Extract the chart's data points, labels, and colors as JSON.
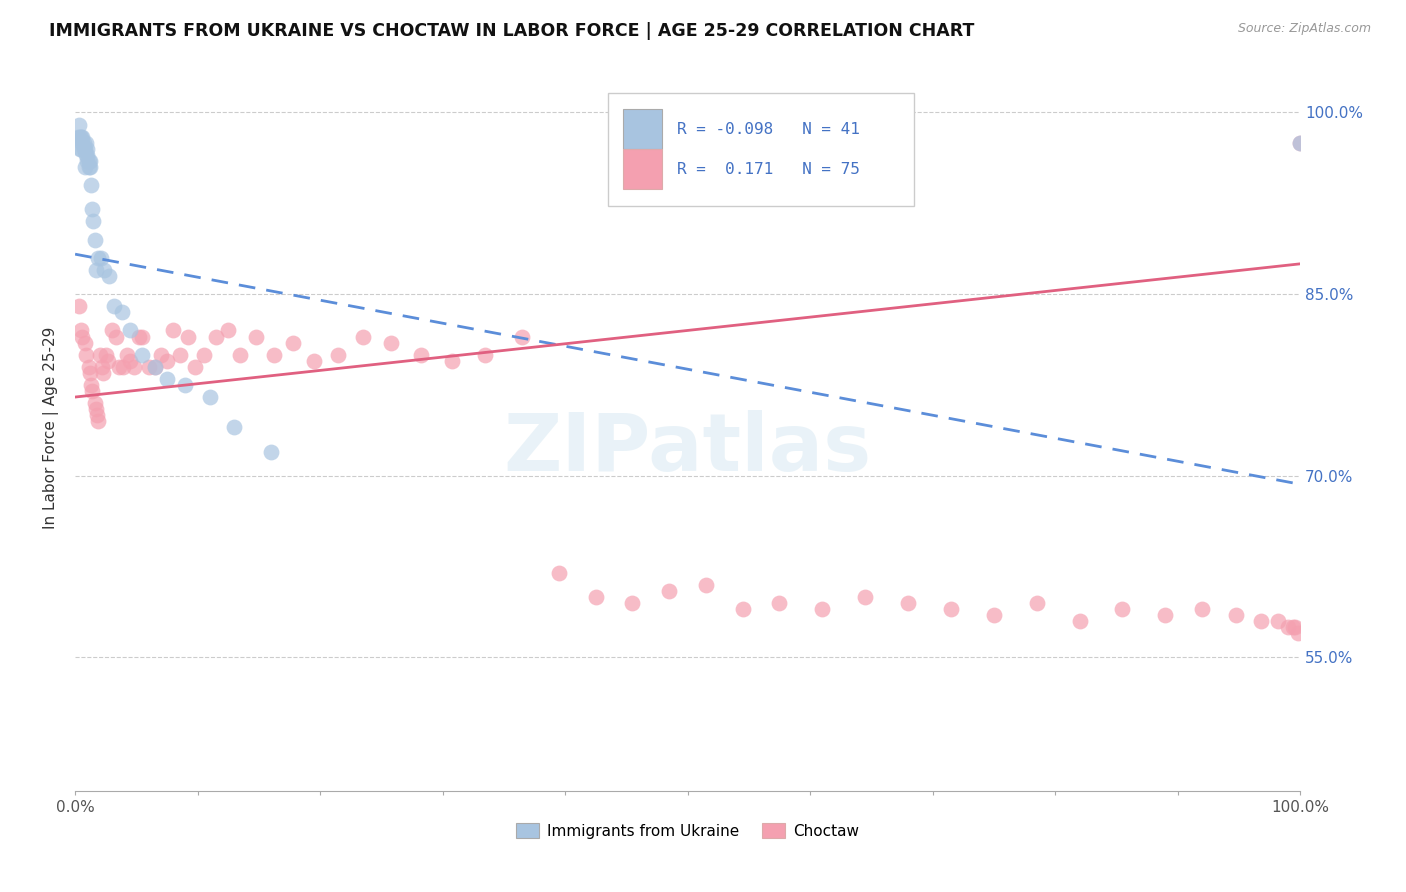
{
  "title": "IMMIGRANTS FROM UKRAINE VS CHOCTAW IN LABOR FORCE | AGE 25-29 CORRELATION CHART",
  "source_text": "Source: ZipAtlas.com",
  "ylabel": "In Labor Force | Age 25-29",
  "xlim": [
    0.0,
    1.0
  ],
  "ylim": [
    0.44,
    1.04
  ],
  "x_ticks": [
    0.0,
    0.1,
    0.2,
    0.3,
    0.4,
    0.5,
    0.6,
    0.7,
    0.8,
    0.9,
    1.0
  ],
  "x_tick_labels": [
    "0.0%",
    "",
    "",
    "",
    "",
    "",
    "",
    "",
    "",
    "",
    "100.0%"
  ],
  "y_ticks": [
    0.55,
    0.7,
    0.85,
    1.0
  ],
  "y_tick_labels": [
    "55.0%",
    "70.0%",
    "85.0%",
    "100.0%"
  ],
  "ukraine_R": -0.098,
  "ukraine_N": 41,
  "choctaw_R": 0.171,
  "choctaw_N": 75,
  "ukraine_color": "#a8c4e0",
  "choctaw_color": "#f4a0b0",
  "ukraine_line_color": "#5b8dd9",
  "choctaw_line_color": "#e06080",
  "watermark": "ZIPatlas",
  "ukraine_x": [
    0.002,
    0.003,
    0.004,
    0.004,
    0.005,
    0.005,
    0.006,
    0.006,
    0.007,
    0.007,
    0.008,
    0.008,
    0.009,
    0.009,
    0.01,
    0.01,
    0.01,
    0.011,
    0.011,
    0.012,
    0.012,
    0.013,
    0.014,
    0.015,
    0.016,
    0.017,
    0.019,
    0.021,
    0.024,
    0.028,
    0.032,
    0.038,
    0.045,
    0.055,
    0.065,
    0.075,
    0.09,
    0.11,
    0.13,
    0.16,
    1.0
  ],
  "ukraine_y": [
    0.98,
    0.99,
    0.97,
    0.98,
    0.97,
    0.98,
    0.975,
    0.98,
    0.97,
    0.975,
    0.955,
    0.97,
    0.965,
    0.975,
    0.96,
    0.965,
    0.97,
    0.955,
    0.96,
    0.955,
    0.96,
    0.94,
    0.92,
    0.91,
    0.895,
    0.87,
    0.88,
    0.88,
    0.87,
    0.865,
    0.84,
    0.835,
    0.82,
    0.8,
    0.79,
    0.78,
    0.775,
    0.765,
    0.74,
    0.72,
    0.975
  ],
  "ukraine_line_x": [
    0.0,
    1.0
  ],
  "ukraine_line_y": [
    0.883,
    0.693
  ],
  "choctaw_x": [
    0.003,
    0.005,
    0.006,
    0.008,
    0.009,
    0.011,
    0.012,
    0.013,
    0.014,
    0.016,
    0.017,
    0.018,
    0.019,
    0.02,
    0.022,
    0.023,
    0.025,
    0.027,
    0.03,
    0.033,
    0.036,
    0.039,
    0.042,
    0.045,
    0.048,
    0.052,
    0.055,
    0.06,
    0.065,
    0.07,
    0.075,
    0.08,
    0.086,
    0.092,
    0.098,
    0.105,
    0.115,
    0.125,
    0.135,
    0.148,
    0.162,
    0.178,
    0.195,
    0.215,
    0.235,
    0.258,
    0.282,
    0.308,
    0.335,
    0.365,
    0.395,
    0.425,
    0.455,
    0.485,
    0.515,
    0.545,
    0.575,
    0.61,
    0.645,
    0.68,
    0.715,
    0.75,
    0.785,
    0.82,
    0.855,
    0.89,
    0.92,
    0.948,
    0.968,
    0.982,
    0.99,
    0.994,
    0.996,
    0.998,
    1.0
  ],
  "choctaw_y": [
    0.84,
    0.82,
    0.815,
    0.81,
    0.8,
    0.79,
    0.785,
    0.775,
    0.77,
    0.76,
    0.755,
    0.75,
    0.745,
    0.8,
    0.79,
    0.785,
    0.8,
    0.795,
    0.82,
    0.815,
    0.79,
    0.79,
    0.8,
    0.795,
    0.79,
    0.815,
    0.815,
    0.79,
    0.79,
    0.8,
    0.795,
    0.82,
    0.8,
    0.815,
    0.79,
    0.8,
    0.815,
    0.82,
    0.8,
    0.815,
    0.8,
    0.81,
    0.795,
    0.8,
    0.815,
    0.81,
    0.8,
    0.795,
    0.8,
    0.815,
    0.62,
    0.6,
    0.595,
    0.605,
    0.61,
    0.59,
    0.595,
    0.59,
    0.6,
    0.595,
    0.59,
    0.585,
    0.595,
    0.58,
    0.59,
    0.585,
    0.59,
    0.585,
    0.58,
    0.58,
    0.575,
    0.575,
    0.575,
    0.57,
    0.975
  ],
  "choctaw_line_x": [
    0.0,
    1.0
  ],
  "choctaw_line_y": [
    0.765,
    0.875
  ]
}
